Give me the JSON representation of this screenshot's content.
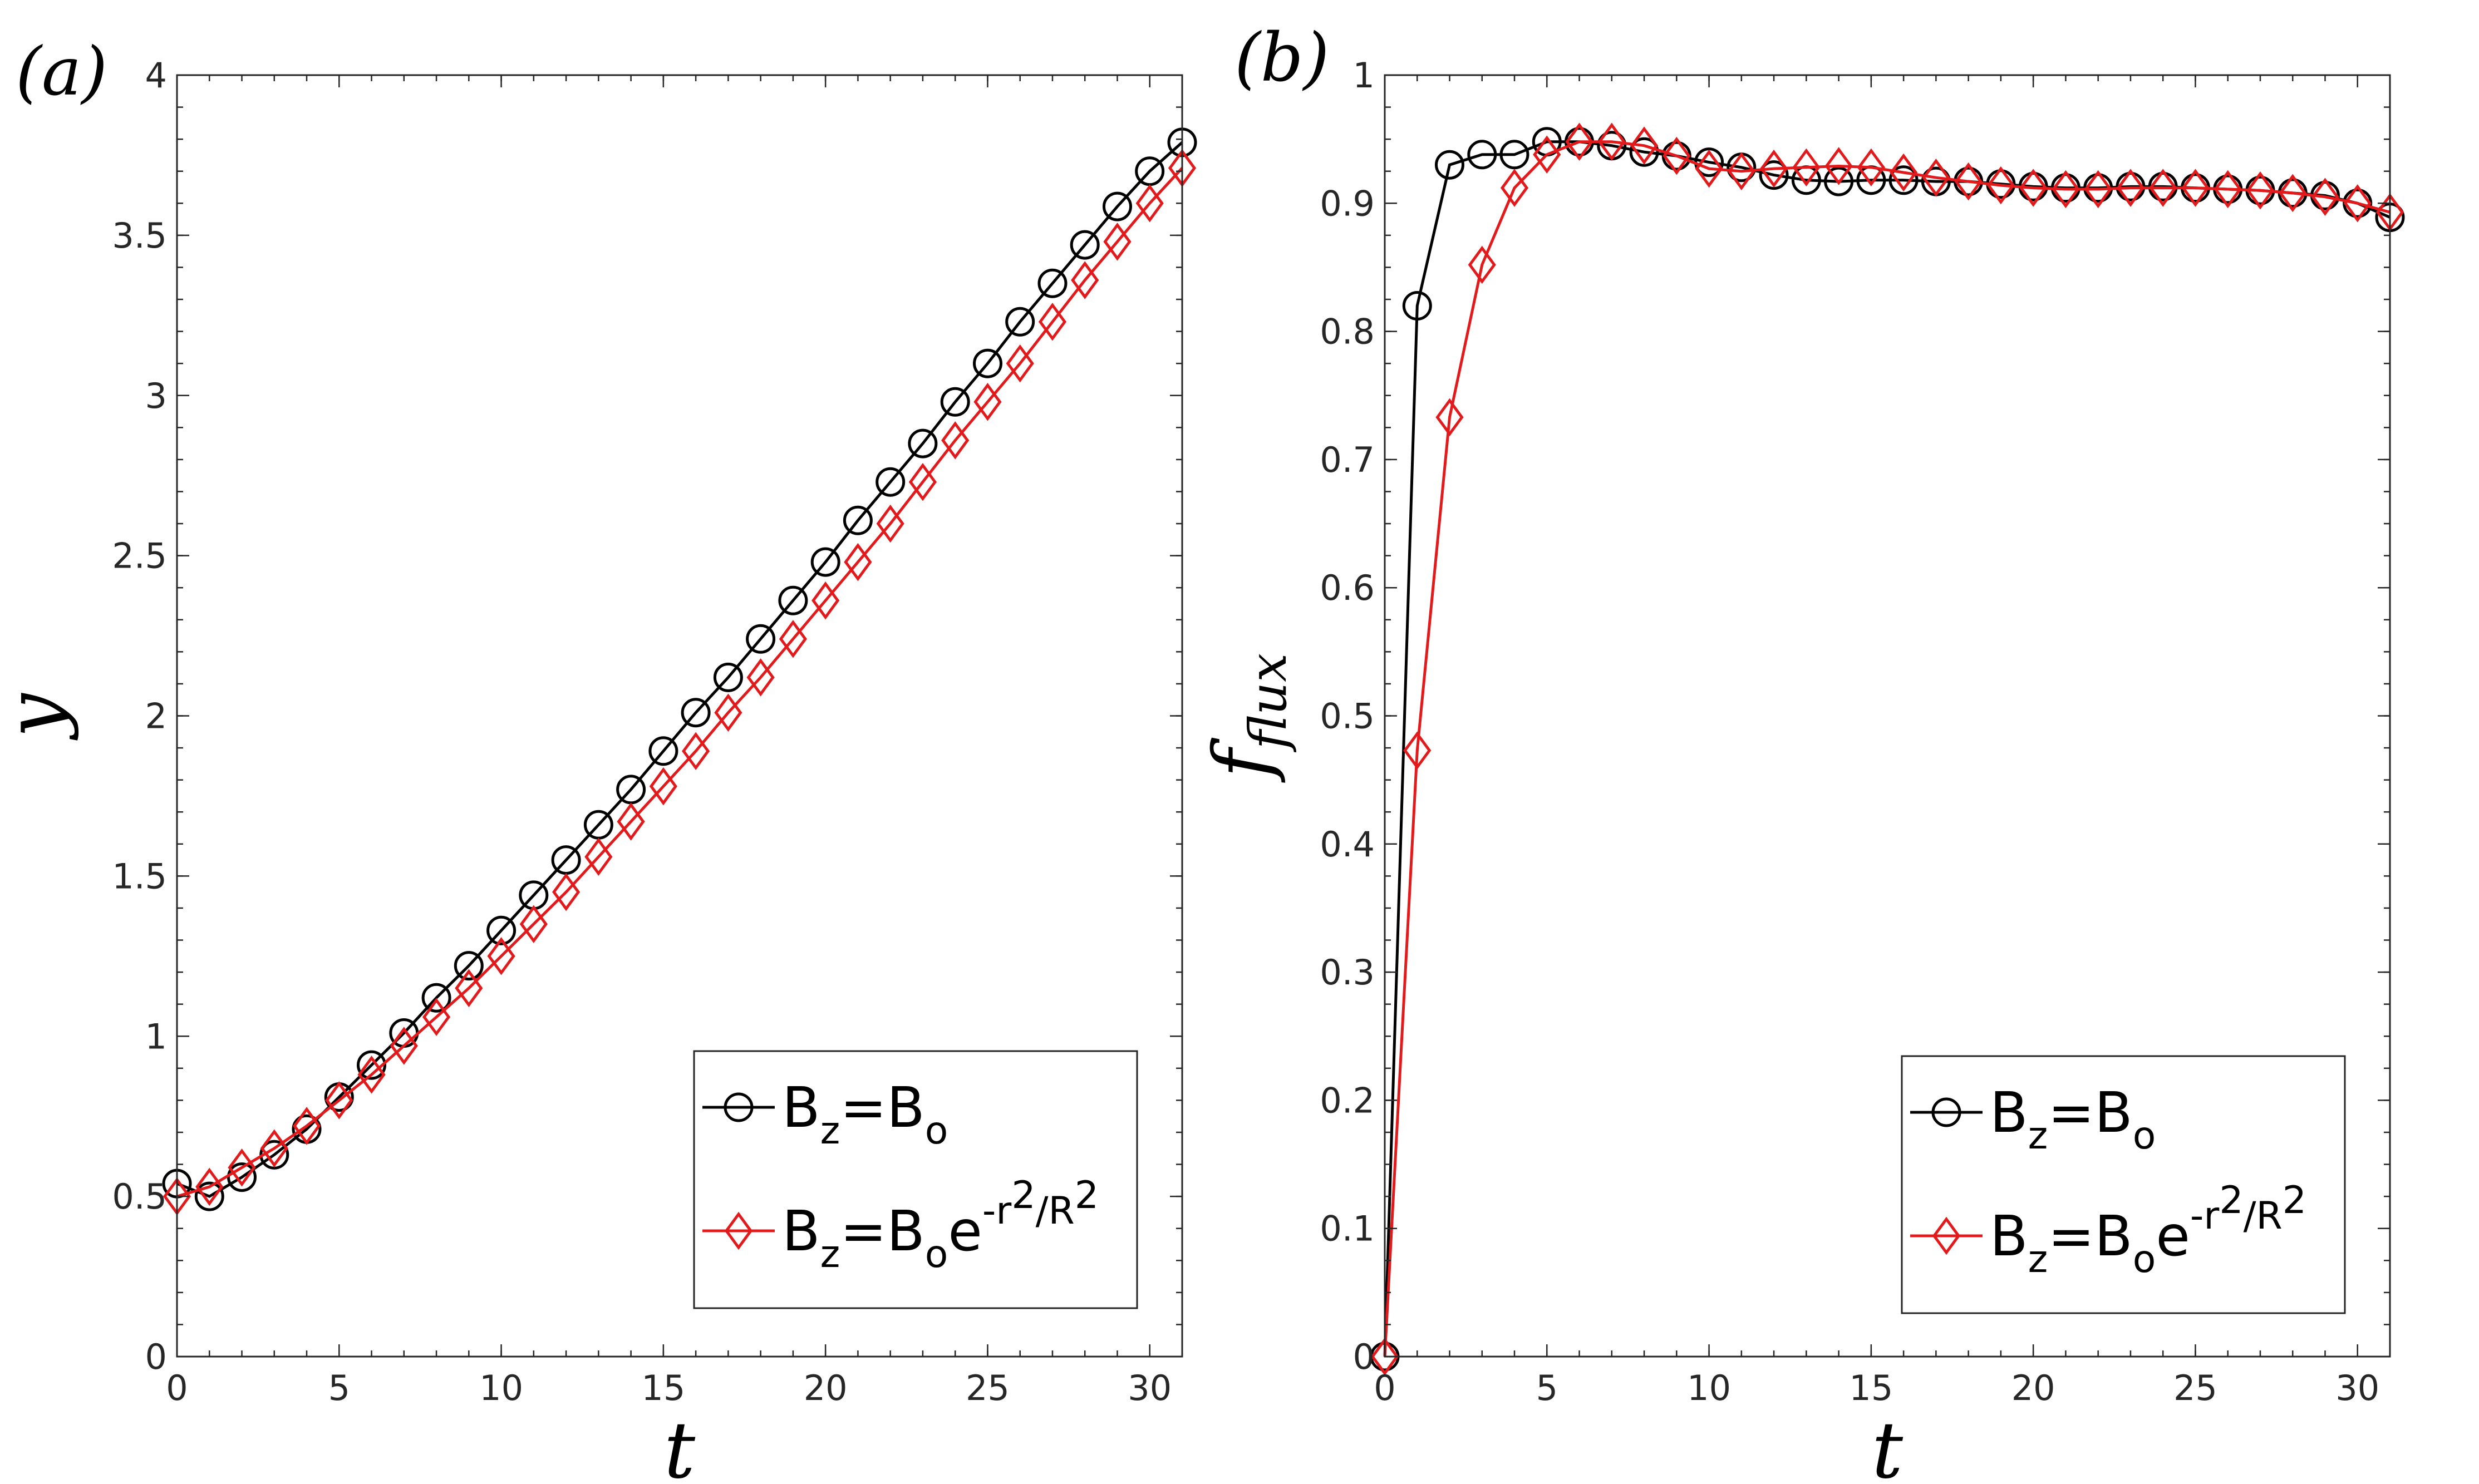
{
  "chart_data": [
    {
      "type": "line",
      "panel_label": "(a)",
      "xlabel": "t",
      "ylabel": "y",
      "xlim": [
        0,
        31
      ],
      "ylim": [
        0,
        4
      ],
      "xticks": [
        "0",
        "5",
        "10",
        "15",
        "20",
        "25",
        "30"
      ],
      "yticks": [
        "0",
        "0.5",
        "1",
        "1.5",
        "2",
        "2.5",
        "3",
        "3.5",
        "4"
      ],
      "x": [
        0,
        1,
        2,
        3,
        4,
        5,
        6,
        7,
        8,
        9,
        10,
        11,
        12,
        13,
        14,
        15,
        16,
        17,
        18,
        19,
        20,
        21,
        22,
        23,
        24,
        25,
        26,
        27,
        28,
        29,
        30,
        31
      ],
      "series": [
        {
          "name": "B_z=B_o",
          "color": "#000000",
          "marker": "circle",
          "values": [
            0.54,
            0.5,
            0.56,
            0.63,
            0.71,
            0.81,
            0.91,
            1.01,
            1.12,
            1.22,
            1.33,
            1.44,
            1.55,
            1.66,
            1.77,
            1.89,
            2.01,
            2.12,
            2.24,
            2.36,
            2.48,
            2.61,
            2.73,
            2.85,
            2.98,
            3.1,
            3.23,
            3.35,
            3.47,
            3.59,
            3.7,
            3.79
          ]
        },
        {
          "name": "B_z=B_o e^(-r^2/R^2)",
          "color": "#e31a1c",
          "marker": "diamond",
          "values": [
            0.5,
            0.53,
            0.59,
            0.65,
            0.72,
            0.8,
            0.88,
            0.97,
            1.06,
            1.15,
            1.25,
            1.35,
            1.45,
            1.56,
            1.67,
            1.78,
            1.89,
            2.01,
            2.12,
            2.24,
            2.36,
            2.48,
            2.6,
            2.73,
            2.86,
            2.98,
            3.1,
            3.23,
            3.36,
            3.48,
            3.6,
            3.71
          ]
        }
      ]
    },
    {
      "type": "line",
      "panel_label": "(b)",
      "xlabel": "t",
      "ylabel": "f_flux",
      "xlim": [
        0,
        31
      ],
      "ylim": [
        0,
        1
      ],
      "xticks": [
        "0",
        "5",
        "10",
        "15",
        "20",
        "25",
        "30"
      ],
      "yticks": [
        "0",
        "0.1",
        "0.2",
        "0.3",
        "0.4",
        "0.5",
        "0.6",
        "0.7",
        "0.8",
        "0.9",
        "1"
      ],
      "x": [
        0,
        1,
        2,
        3,
        4,
        5,
        6,
        7,
        8,
        9,
        10,
        11,
        12,
        13,
        14,
        15,
        16,
        17,
        18,
        19,
        20,
        21,
        22,
        23,
        24,
        25,
        26,
        27,
        28,
        29,
        30,
        31
      ],
      "series": [
        {
          "name": "B_z=B_o",
          "color": "#000000",
          "marker": "circle",
          "values": [
            0.0,
            0.82,
            0.93,
            0.938,
            0.938,
            0.948,
            0.948,
            0.945,
            0.94,
            0.937,
            0.932,
            0.928,
            0.922,
            0.918,
            0.917,
            0.918,
            0.918,
            0.917,
            0.917,
            0.915,
            0.913,
            0.912,
            0.912,
            0.913,
            0.913,
            0.912,
            0.911,
            0.91,
            0.908,
            0.906,
            0.9,
            0.889
          ]
        },
        {
          "name": "B_z=B_o e^(-r^2/R^2)",
          "color": "#e31a1c",
          "marker": "diamond",
          "values": [
            0.0,
            0.473,
            0.733,
            0.852,
            0.912,
            0.938,
            0.948,
            0.948,
            0.945,
            0.937,
            0.927,
            0.925,
            0.927,
            0.928,
            0.929,
            0.928,
            0.924,
            0.92,
            0.917,
            0.914,
            0.912,
            0.911,
            0.911,
            0.912,
            0.912,
            0.912,
            0.911,
            0.91,
            0.908,
            0.905,
            0.9,
            0.893
          ]
        }
      ]
    }
  ],
  "legend": {
    "entry1": {
      "B": "B",
      "sub_z": "z",
      "eq": "=B",
      "sub_o": "o"
    },
    "entry2": {
      "B": "B",
      "sub_z": "z",
      "eq": "=B",
      "sub_o": "o",
      "e": "e",
      "exp_a": "-r",
      "exp_b": "2",
      "exp_c": "/R",
      "exp_d": "2"
    }
  }
}
